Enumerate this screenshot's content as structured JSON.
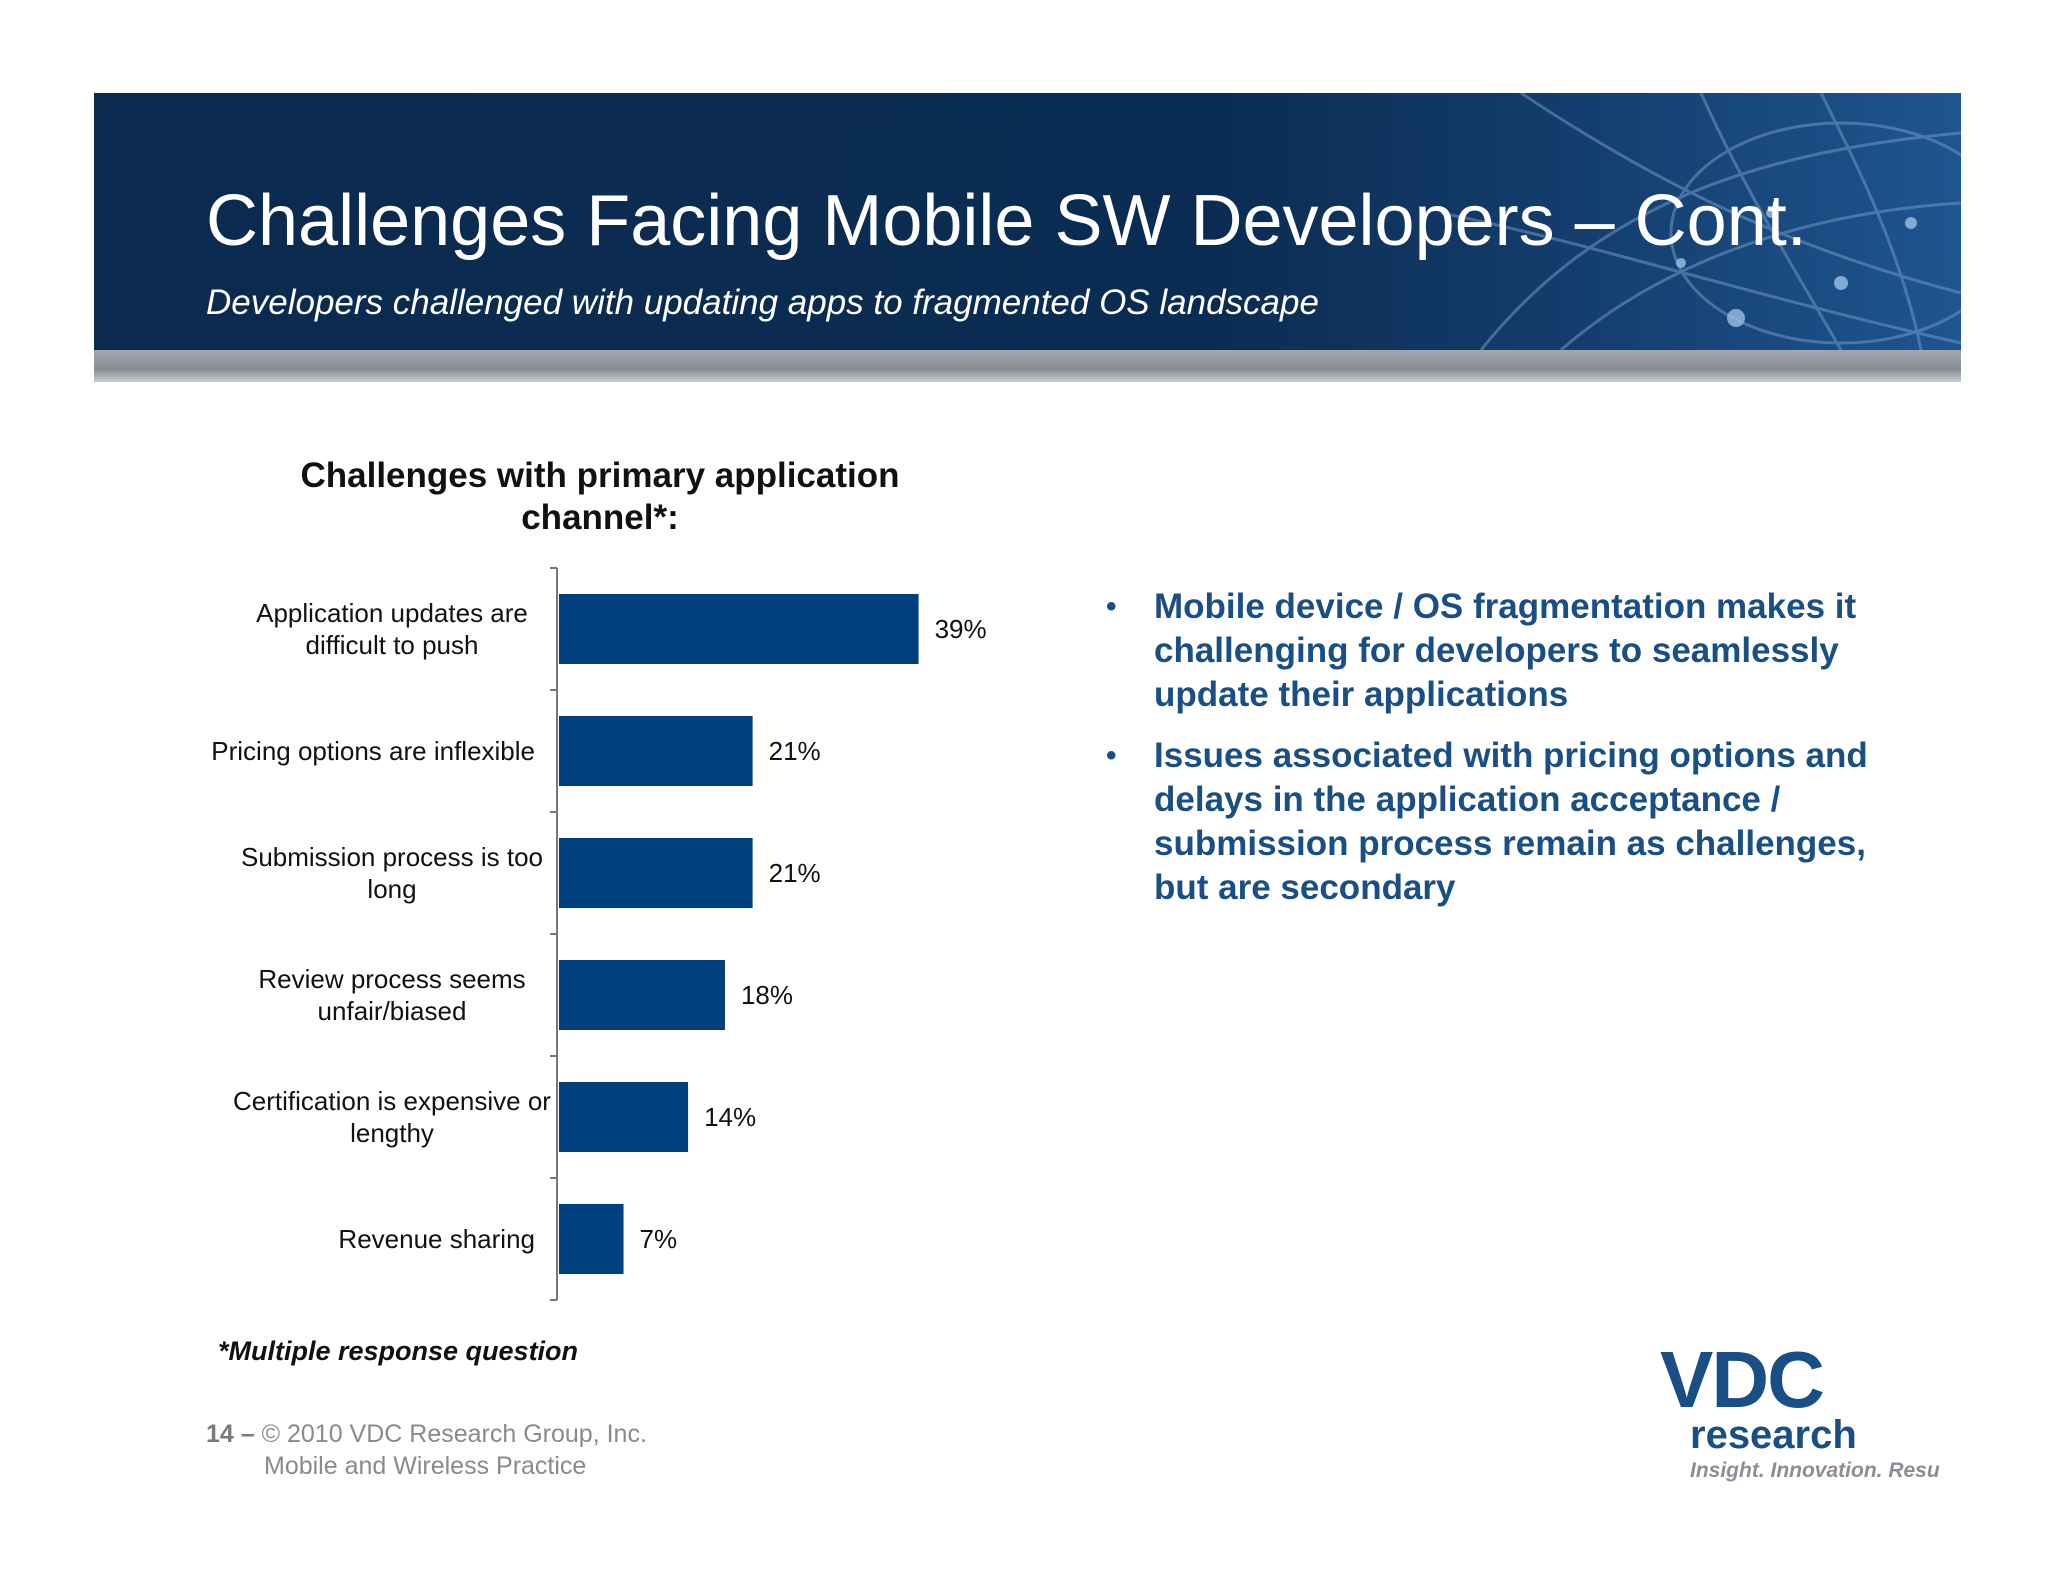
{
  "slide": {
    "title": "Challenges Facing Mobile SW Developers – Cont.",
    "subtitle": "Developers challenged with updating apps to  fragmented OS landscape"
  },
  "chart_title_line1": "Challenges with primary application",
  "chart_title_line2": "channel*:",
  "chart_data": {
    "type": "bar",
    "orientation": "horizontal",
    "title": "Challenges with primary application channel*:",
    "categories": [
      [
        "Application updates are",
        "difficult to push"
      ],
      [
        "Pricing options are inflexible"
      ],
      [
        "Submission process is too",
        "long"
      ],
      [
        "Review process seems",
        "unfair/biased"
      ],
      [
        "Certification is expensive or",
        "lengthy"
      ],
      [
        "Revenue sharing"
      ]
    ],
    "values": [
      39,
      21,
      21,
      18,
      14,
      7
    ],
    "value_labels": [
      "39%",
      "21%",
      "21%",
      "18%",
      "14%",
      "7%"
    ],
    "xlim": [
      0,
      100
    ],
    "grid": false,
    "bar_color": "#003f7d"
  },
  "bullets": [
    "Mobile device / OS fragmentation makes it challenging for developers to seamlessly update their applications",
    "Issues associated with pricing options and delays in the application acceptance / submission process remain as challenges, but are secondary"
  ],
  "footnote": "*Multiple response question",
  "footer": {
    "page_number": "14 –",
    "copyright": " © 2010 VDC Research Group, Inc.",
    "practice": "Mobile and Wireless Practice"
  },
  "logo": {
    "mark": "VDC",
    "word": "research",
    "tagline": "Insight. Innovation. Results."
  },
  "colors": {
    "banner": "#0b2c52",
    "accent": "#1a4f86",
    "bar": "#003f7d"
  }
}
